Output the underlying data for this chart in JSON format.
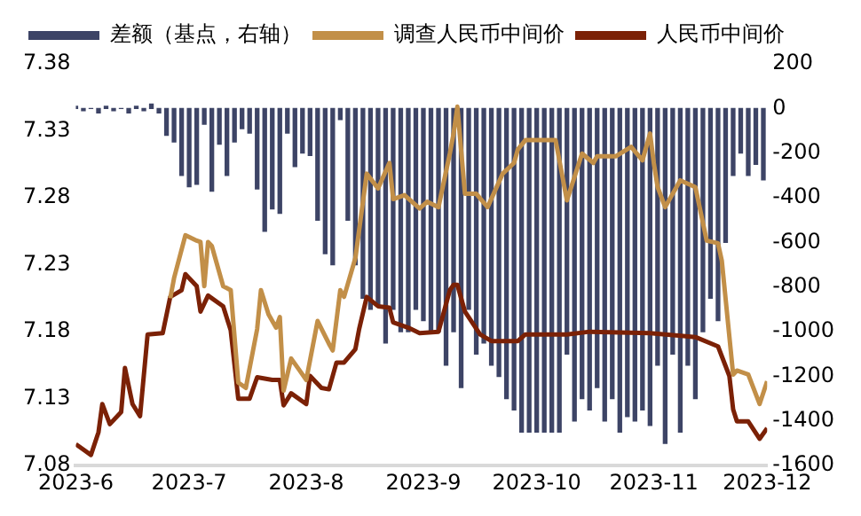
{
  "chart_data": {
    "type": "line",
    "legend": "top",
    "grid": false,
    "xlim": [
      "2023-06-01",
      "2023-12-01"
    ],
    "xticks": [
      {
        "value": "2023-06-01",
        "label": "2023-6"
      },
      {
        "value": "2023-07-01",
        "label": "2023-7"
      },
      {
        "value": "2023-08-01",
        "label": "2023-8"
      },
      {
        "value": "2023-09-01",
        "label": "2023-9"
      },
      {
        "value": "2023-10-01",
        "label": "2023-10"
      },
      {
        "value": "2023-11-01",
        "label": "2023-11"
      },
      {
        "value": "2023-12-01",
        "label": "2023-12"
      }
    ],
    "ylim": [
      7.08,
      7.38
    ],
    "yticks": [
      7.08,
      7.13,
      7.18,
      7.23,
      7.28,
      7.33,
      7.38
    ],
    "y2lim": [
      -1600,
      200
    ],
    "y2ticks": [
      -1600,
      -1400,
      -1200,
      -1000,
      -800,
      -600,
      -400,
      -200,
      0,
      200
    ],
    "series": [
      {
        "name": "差额（基点，右轴）",
        "type": "bar",
        "axis": "y2",
        "color": "#3d4466",
        "x": [
          "2023-06-01",
          "2023-06-03",
          "2023-06-05",
          "2023-06-07",
          "2023-06-09",
          "2023-06-11",
          "2023-06-13",
          "2023-06-15",
          "2023-06-17",
          "2023-06-19",
          "2023-06-21",
          "2023-06-23",
          "2023-06-25",
          "2023-06-27",
          "2023-06-29",
          "2023-07-01",
          "2023-07-03",
          "2023-07-05",
          "2023-07-07",
          "2023-07-09",
          "2023-07-11",
          "2023-07-13",
          "2023-07-15",
          "2023-07-17",
          "2023-07-19",
          "2023-07-21",
          "2023-07-23",
          "2023-07-25",
          "2023-07-27",
          "2023-07-29",
          "2023-07-31",
          "2023-08-02",
          "2023-08-04",
          "2023-08-06",
          "2023-08-08",
          "2023-08-10",
          "2023-08-12",
          "2023-08-14",
          "2023-08-16",
          "2023-08-18",
          "2023-08-20",
          "2023-08-22",
          "2023-08-24",
          "2023-08-26",
          "2023-08-28",
          "2023-08-30",
          "2023-09-01",
          "2023-09-03",
          "2023-09-05",
          "2023-09-07",
          "2023-09-09",
          "2023-09-11",
          "2023-09-13",
          "2023-09-15",
          "2023-09-17",
          "2023-09-19",
          "2023-09-21",
          "2023-09-23",
          "2023-09-25",
          "2023-09-27",
          "2023-09-29",
          "2023-10-01",
          "2023-10-03",
          "2023-10-05",
          "2023-10-07",
          "2023-10-09",
          "2023-10-11",
          "2023-10-13",
          "2023-10-15",
          "2023-10-17",
          "2023-10-19",
          "2023-10-21",
          "2023-10-23",
          "2023-10-25",
          "2023-10-27",
          "2023-10-29",
          "2023-10-31",
          "2023-11-02",
          "2023-11-04",
          "2023-11-06",
          "2023-11-08",
          "2023-11-10",
          "2023-11-12",
          "2023-11-14",
          "2023-11-16",
          "2023-11-18",
          "2023-11-20",
          "2023-11-22",
          "2023-11-24",
          "2023-11-26",
          "2023-11-28",
          "2023-11-30"
        ],
        "values": [
          10,
          -10,
          0,
          -20,
          10,
          -10,
          0,
          -20,
          10,
          -10,
          20,
          -20,
          -120,
          -150,
          -300,
          -350,
          -340,
          -70,
          -370,
          -160,
          -300,
          -150,
          -90,
          -110,
          -360,
          -550,
          -450,
          -470,
          -110,
          -260,
          -200,
          -210,
          -500,
          -650,
          -700,
          -50,
          -500,
          -700,
          -850,
          -900,
          -880,
          -1050,
          -900,
          -1000,
          -1000,
          -900,
          -950,
          -1000,
          -1000,
          -1150,
          -1000,
          -1250,
          -900,
          -1100,
          -1050,
          -1150,
          -1200,
          -1300,
          -1350,
          -1450,
          -1450,
          -1450,
          -1450,
          -1450,
          -1450,
          -1100,
          -1400,
          -1300,
          -1350,
          -1250,
          -1400,
          -1300,
          -1450,
          -1380,
          -1400,
          -1350,
          -1420,
          -1150,
          -1500,
          -1100,
          -1450,
          -1150,
          -1300,
          -1000,
          -850,
          -950,
          -600,
          -300,
          -200,
          -300,
          -250,
          -320
        ]
      },
      {
        "name": "调查人民币中间价",
        "color": "#c28f48",
        "x": [
          "2023-06-26",
          "2023-06-27",
          "2023-06-30",
          "2023-07-03",
          "2023-07-04",
          "2023-07-05",
          "2023-07-06",
          "2023-07-07",
          "2023-07-10",
          "2023-07-12",
          "2023-07-14",
          "2023-07-16",
          "2023-07-19",
          "2023-07-20",
          "2023-07-22",
          "2023-07-24",
          "2023-07-25",
          "2023-07-26",
          "2023-07-28",
          "2023-07-30",
          "2023-08-01",
          "2023-08-04",
          "2023-08-07",
          "2023-08-08",
          "2023-08-10",
          "2023-08-11",
          "2023-08-14",
          "2023-08-17",
          "2023-08-20",
          "2023-08-23",
          "2023-08-24",
          "2023-08-27",
          "2023-08-31",
          "2023-09-02",
          "2023-09-05",
          "2023-09-08",
          "2023-09-09",
          "2023-09-10",
          "2023-09-12",
          "2023-09-15",
          "2023-09-18",
          "2023-09-22",
          "2023-09-25",
          "2023-09-26",
          "2023-09-28",
          "2023-10-06",
          "2023-10-09",
          "2023-10-13",
          "2023-10-16",
          "2023-10-17",
          "2023-10-22",
          "2023-10-26",
          "2023-10-29",
          "2023-10-31",
          "2023-11-01",
          "2023-11-02",
          "2023-11-04",
          "2023-11-08",
          "2023-11-12",
          "2023-11-15",
          "2023-11-18",
          "2023-11-19",
          "2023-11-22",
          "2023-11-23",
          "2023-11-26",
          "2023-11-29",
          "2023-12-01"
        ],
        "values": [
          7.205,
          7.22,
          7.252,
          7.248,
          7.247,
          7.214,
          7.247,
          7.244,
          7.214,
          7.211,
          7.142,
          7.138,
          7.182,
          7.211,
          7.193,
          7.183,
          7.191,
          7.136,
          7.16,
          7.152,
          7.144,
          7.188,
          7.171,
          7.166,
          7.211,
          7.206,
          7.235,
          7.298,
          7.287,
          7.306,
          7.279,
          7.282,
          7.272,
          7.277,
          7.273,
          7.313,
          7.328,
          7.348,
          7.283,
          7.283,
          7.273,
          7.298,
          7.306,
          7.316,
          7.323,
          7.323,
          7.278,
          7.313,
          7.306,
          7.311,
          7.311,
          7.318,
          7.308,
          7.328,
          7.306,
          7.288,
          7.273,
          7.293,
          7.288,
          7.248,
          7.246,
          7.233,
          7.148,
          7.151,
          7.148,
          7.126,
          7.143
        ]
      },
      {
        "name": "人民币中间价",
        "color": "#7b2106",
        "x": [
          "2023-06-01",
          "2023-06-05",
          "2023-06-07",
          "2023-06-08",
          "2023-06-10",
          "2023-06-13",
          "2023-06-14",
          "2023-06-16",
          "2023-06-18",
          "2023-06-20",
          "2023-06-24",
          "2023-06-26",
          "2023-06-29",
          "2023-06-30",
          "2023-07-03",
          "2023-07-04",
          "2023-07-06",
          "2023-07-10",
          "2023-07-12",
          "2023-07-14",
          "2023-07-17",
          "2023-07-19",
          "2023-07-23",
          "2023-07-25",
          "2023-07-26",
          "2023-07-28",
          "2023-08-01",
          "2023-08-02",
          "2023-08-05",
          "2023-08-07",
          "2023-08-09",
          "2023-08-11",
          "2023-08-14",
          "2023-08-15",
          "2023-08-17",
          "2023-08-20",
          "2023-08-23",
          "2023-08-24",
          "2023-08-28",
          "2023-08-31",
          "2023-09-05",
          "2023-09-08",
          "2023-09-09",
          "2023-09-10",
          "2023-09-12",
          "2023-09-16",
          "2023-09-19",
          "2023-09-26",
          "2023-09-28",
          "2023-10-09",
          "2023-10-15",
          "2023-10-31",
          "2023-11-12",
          "2023-11-18",
          "2023-11-21",
          "2023-11-22",
          "2023-11-23",
          "2023-11-26",
          "2023-11-29",
          "2023-12-01"
        ],
        "values": [
          7.096,
          7.088,
          7.105,
          7.126,
          7.111,
          7.12,
          7.153,
          7.126,
          7.117,
          7.178,
          7.179,
          7.206,
          7.211,
          7.223,
          7.214,
          7.195,
          7.207,
          7.199,
          7.181,
          7.13,
          7.13,
          7.146,
          7.144,
          7.144,
          7.125,
          7.134,
          7.126,
          7.147,
          7.138,
          7.137,
          7.157,
          7.157,
          7.167,
          7.182,
          7.206,
          7.199,
          7.198,
          7.187,
          7.183,
          7.179,
          7.18,
          7.211,
          7.215,
          7.215,
          7.195,
          7.178,
          7.173,
          7.173,
          7.178,
          7.178,
          7.18,
          7.179,
          7.176,
          7.169,
          7.147,
          7.122,
          7.113,
          7.113,
          7.1,
          7.108
        ]
      }
    ]
  }
}
